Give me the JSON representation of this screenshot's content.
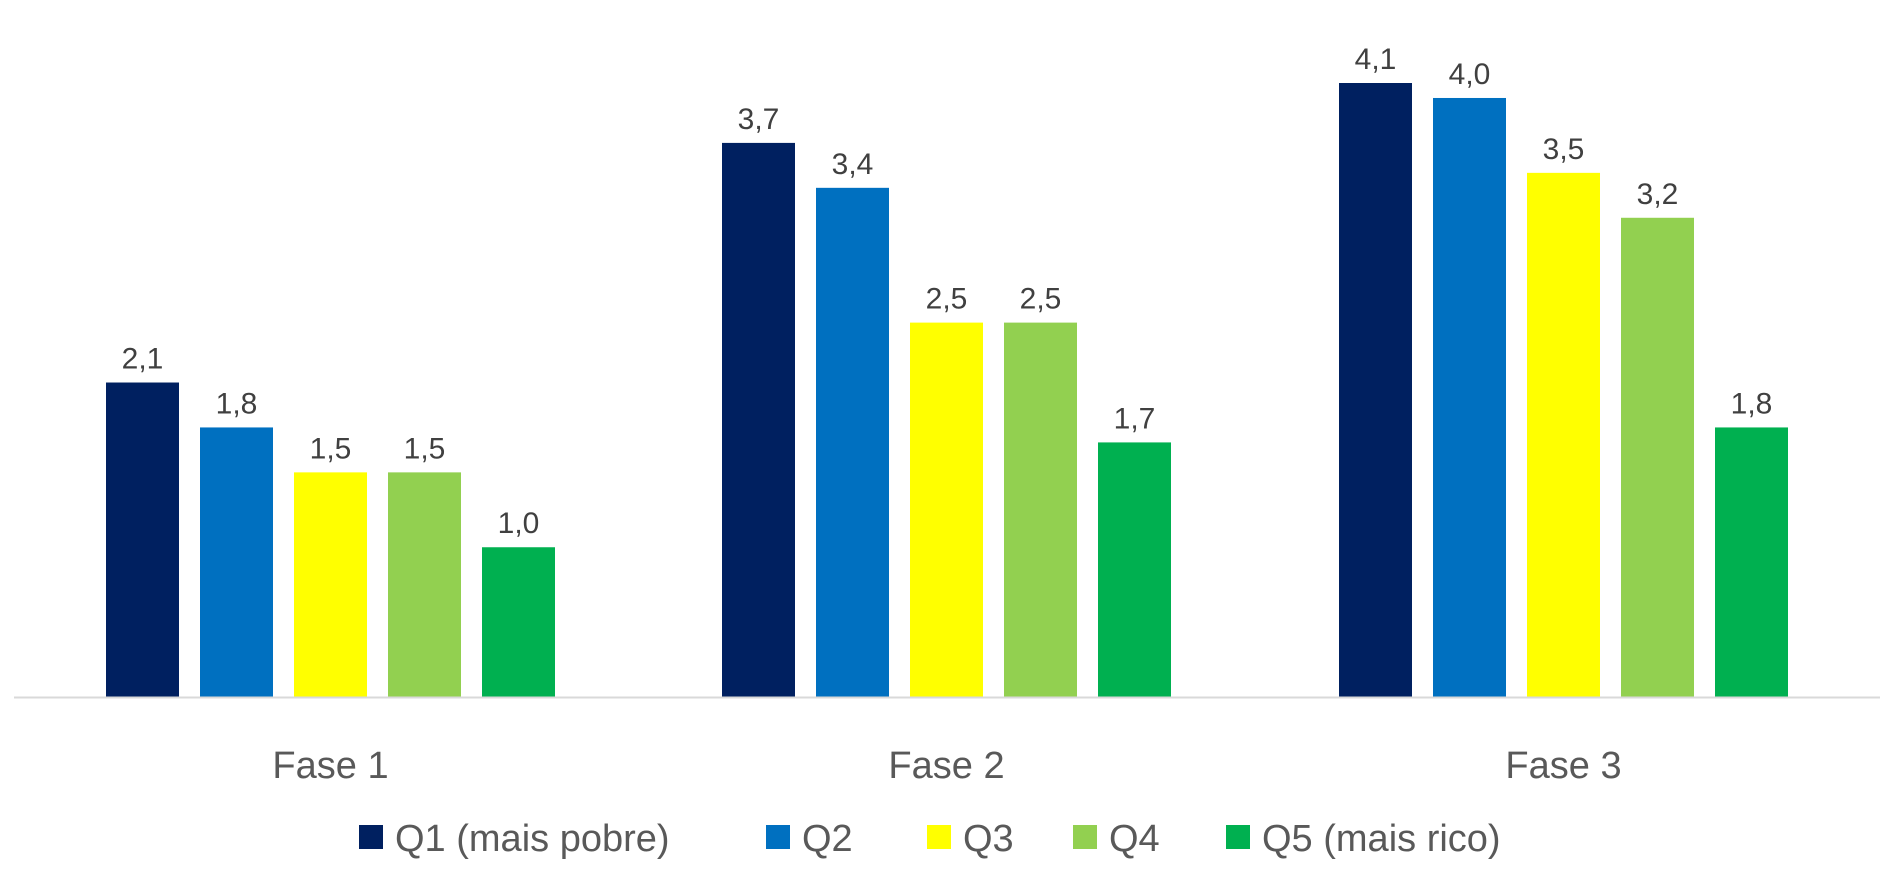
{
  "chart_data": {
    "type": "bar",
    "title": "",
    "xlabel": "",
    "ylabel": "",
    "categories": [
      "Fase 1",
      "Fase 2",
      "Fase 3"
    ],
    "series": [
      {
        "name": "Q1 (mais pobre)",
        "color": "#002060",
        "values": [
          2.1,
          3.7,
          4.1
        ],
        "labels": [
          "2,1",
          "3,7",
          "4,1"
        ]
      },
      {
        "name": "Q2",
        "color": "#0070C0",
        "values": [
          1.8,
          3.4,
          4.0
        ],
        "labels": [
          "1,8",
          "3,4",
          "4,0"
        ]
      },
      {
        "name": "Q3",
        "color": "#FFFF00",
        "values": [
          1.5,
          2.5,
          3.5
        ],
        "labels": [
          "1,5",
          "2,5",
          "3,5"
        ]
      },
      {
        "name": "Q4",
        "color": "#92D050",
        "values": [
          1.5,
          2.5,
          3.2
        ],
        "labels": [
          "1,5",
          "2,5",
          "3,2"
        ]
      },
      {
        "name": "Q5 (mais rico)",
        "color": "#00B050",
        "values": [
          1.0,
          1.7,
          1.8
        ],
        "labels": [
          "1,0",
          "1,7",
          "1,8"
        ]
      }
    ],
    "ylim": [
      0,
      4.1
    ],
    "grid": false,
    "legend_position": "bottom",
    "axis_color": "#D9D9D9"
  }
}
